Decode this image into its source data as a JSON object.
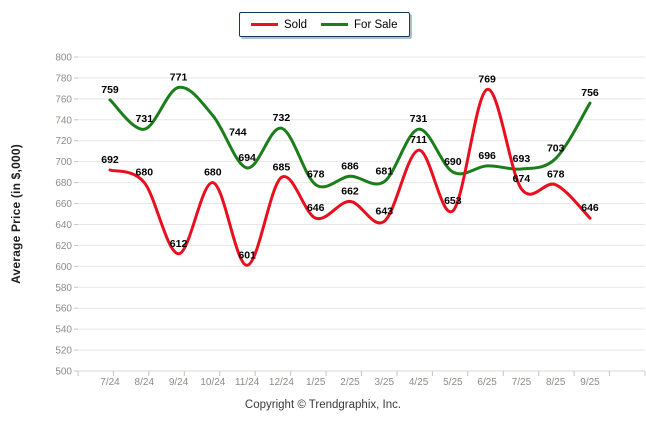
{
  "legend": {
    "items": [
      {
        "label": "Sold",
        "color": "#e8101e"
      },
      {
        "label": "For Sale",
        "color": "#1b7e1b"
      }
    ]
  },
  "footer": {
    "text": "Copyright © Trendgraphix, Inc."
  },
  "chart_data": {
    "type": "line",
    "title": "",
    "xlabel": "",
    "ylabel": "Average Price (in $,000)",
    "categories": [
      "7/24",
      "8/24",
      "9/24",
      "10/24",
      "11/24",
      "12/24",
      "1/25",
      "2/25",
      "3/25",
      "4/25",
      "5/25",
      "6/25",
      "7/25",
      "8/25",
      "9/25"
    ],
    "series": [
      {
        "name": "Sold",
        "color": "#e8101e",
        "values": [
          692,
          680,
          612,
          680,
          601,
          685,
          646,
          662,
          643,
          711,
          653,
          769,
          674,
          678,
          646
        ]
      },
      {
        "name": "For Sale",
        "color": "#1b7e1b",
        "values": [
          759,
          731,
          771,
          744,
          694,
          732,
          678,
          686,
          681,
          731,
          690,
          696,
          693,
          703,
          756
        ]
      }
    ],
    "ylim": [
      500,
      800
    ],
    "ytick_step": 20,
    "grid": true,
    "legend_position": "top-center",
    "smooth": true,
    "label_offsets": [
      {
        "series": 1,
        "index": 3,
        "dx": 25,
        "dy": 27
      }
    ]
  },
  "colors": {
    "grid": "#e7e7e7",
    "axis_line": "#d9d9d9",
    "tick": "#c4c4c4",
    "tick_text": "#8c8c86",
    "data_label": "#000000",
    "legend_border": "#17375d",
    "background": "#ffffff"
  }
}
